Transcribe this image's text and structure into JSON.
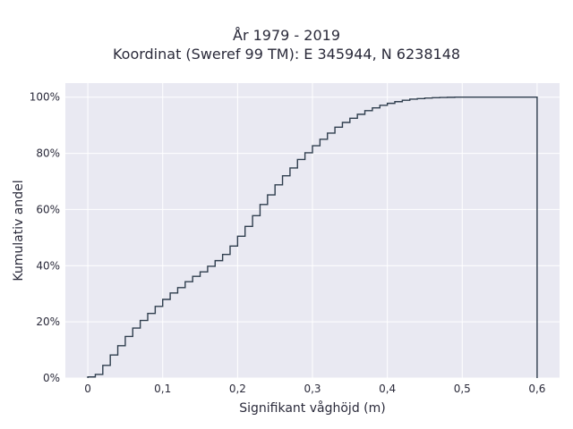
{
  "chart_data": {
    "type": "line",
    "subtype": "cumulative-step",
    "title": "År 1979 - 2019",
    "subtitle": "Koordinat (Sweref 99 TM): E 345944, N 6238148",
    "xlabel": "Signifikant våghöjd (m)",
    "ylabel": "Kumulativ andel",
    "xlim": [
      -0.03,
      0.63
    ],
    "ylim": [
      0,
      1.05
    ],
    "x_ticks": [
      0,
      0.1,
      0.2,
      0.3,
      0.4,
      0.5,
      0.6
    ],
    "x_tick_labels": [
      "0",
      "0,1",
      "0,2",
      "0,3",
      "0,4",
      "0,5",
      "0,6"
    ],
    "y_ticks": [
      0,
      0.2,
      0.4,
      0.6,
      0.8,
      1.0
    ],
    "y_tick_labels": [
      "0%",
      "20%",
      "40%",
      "60%",
      "80%",
      "100%"
    ],
    "grid": true,
    "line_color": "#2f3e4e",
    "x": [
      0,
      0.01,
      0.02,
      0.03,
      0.04,
      0.05,
      0.06,
      0.07,
      0.08,
      0.09,
      0.1,
      0.11,
      0.12,
      0.13,
      0.14,
      0.15,
      0.16,
      0.17,
      0.18,
      0.19,
      0.2,
      0.21,
      0.22,
      0.23,
      0.24,
      0.25,
      0.26,
      0.27,
      0.28,
      0.29,
      0.3,
      0.31,
      0.32,
      0.33,
      0.34,
      0.35,
      0.36,
      0.37,
      0.38,
      0.39,
      0.4,
      0.41,
      0.42,
      0.43,
      0.44,
      0.45,
      0.46,
      0.47,
      0.48,
      0.49,
      0.5,
      0.51,
      0.52,
      0.53,
      0.54,
      0.55,
      0.56,
      0.57,
      0.58,
      0.59,
      0.6
    ],
    "y": [
      0.004,
      0.013,
      0.045,
      0.082,
      0.115,
      0.148,
      0.178,
      0.205,
      0.23,
      0.255,
      0.28,
      0.303,
      0.322,
      0.343,
      0.362,
      0.378,
      0.398,
      0.418,
      0.44,
      0.47,
      0.505,
      0.54,
      0.578,
      0.618,
      0.652,
      0.688,
      0.72,
      0.748,
      0.778,
      0.802,
      0.827,
      0.85,
      0.872,
      0.893,
      0.91,
      0.925,
      0.939,
      0.952,
      0.962,
      0.971,
      0.978,
      0.984,
      0.989,
      0.993,
      0.995,
      0.997,
      0.998,
      0.999,
      0.9995,
      1.0,
      1.0,
      1.0,
      1.0,
      1.0,
      1.0,
      1.0,
      1.0,
      1.0,
      1.0,
      1.0,
      1.0
    ]
  }
}
